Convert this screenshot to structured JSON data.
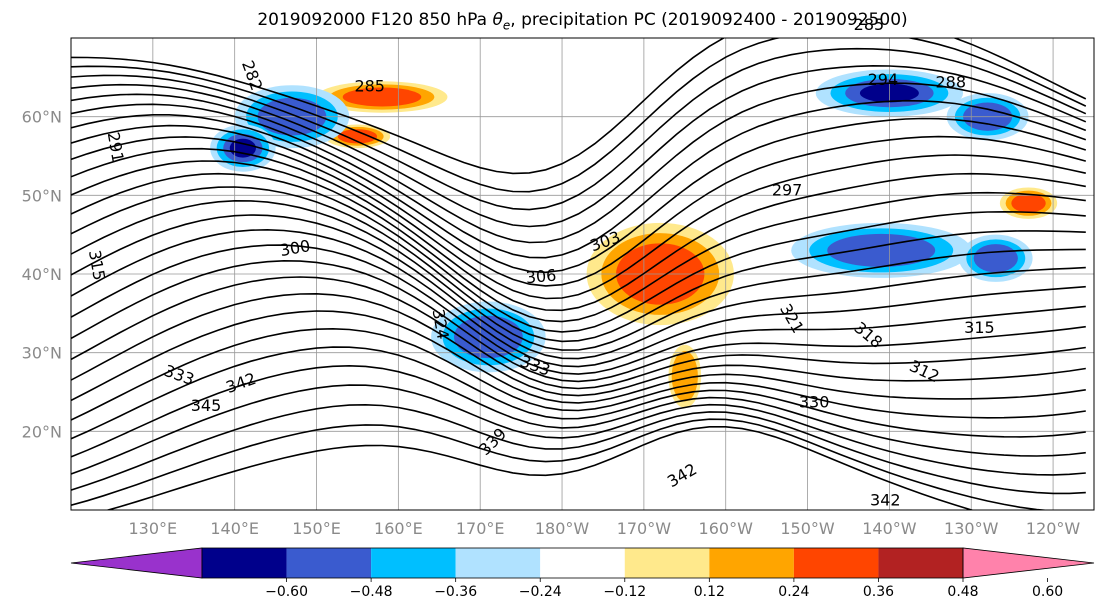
{
  "chart_data": {
    "type": "heatmap",
    "title": "2019092000 F120 850 hPa",
    "title_symbol": "θ",
    "title_subscript": "e",
    "title_rest": ", precipitation PC (2019092400 - 2019092500)",
    "lat_labels": [
      "60°N",
      "50°N",
      "40°N",
      "30°N",
      "20°N"
    ],
    "lat_values": [
      60,
      50,
      40,
      30,
      20
    ],
    "lon_labels": [
      "130°E",
      "140°E",
      "150°E",
      "160°E",
      "170°E",
      "180°W",
      "170°W",
      "160°W",
      "150°W",
      "140°W",
      "130°W",
      "120°W"
    ],
    "lon_range": [
      120,
      245
    ],
    "lat_range": [
      10,
      70
    ],
    "grid": true,
    "colorbar": {
      "orientation": "horizontal",
      "extend": "both",
      "levels": [
        -0.72,
        -0.6,
        -0.48,
        -0.36,
        -0.24,
        -0.12,
        0.12,
        0.24,
        0.36,
        0.48,
        0.6,
        0.72
      ],
      "colors": [
        "#9932cc",
        "#00008b",
        "#3a5bcf",
        "#00bfff",
        "#b0e2ff",
        "#ffffff",
        "#ffe98c",
        "#ffa500",
        "#ff4500",
        "#b22222",
        "#ff82ab"
      ],
      "tick_labels": [
        "−0.60",
        "−0.48",
        "−0.36",
        "−0.24",
        "−0.12",
        "0.12",
        "0.24",
        "0.36",
        "0.48",
        "0.60"
      ]
    },
    "contour_labels": [
      {
        "text": "282",
        "lon": 141.5,
        "lat": 65.0,
        "angle": 70
      },
      {
        "text": "285",
        "lon": 156.5,
        "lat": 63.2,
        "angle": 0
      },
      {
        "text": "291",
        "lon": 124.8,
        "lat": 56.0,
        "angle": 80
      },
      {
        "text": "300",
        "lon": 147.5,
        "lat": 42.6,
        "angle": -10
      },
      {
        "text": "315",
        "lon": 122.5,
        "lat": 41.0,
        "angle": 80
      },
      {
        "text": "324",
        "lon": 164.5,
        "lat": 33.5,
        "angle": 80
      },
      {
        "text": "306",
        "lon": 177.5,
        "lat": 39.0,
        "angle": -5
      },
      {
        "text": "303",
        "lon": 185.5,
        "lat": 43.5,
        "angle": -20
      },
      {
        "text": "297",
        "lon": 207.5,
        "lat": 50.0,
        "angle": 0
      },
      {
        "text": "288",
        "lon": 227.5,
        "lat": 63.7,
        "angle": 0
      },
      {
        "text": "285",
        "lon": 217.5,
        "lat": 71.0,
        "angle": 0
      },
      {
        "text": "294",
        "lon": 219.2,
        "lat": 64.0,
        "angle": 0
      },
      {
        "text": "315",
        "lon": 231.0,
        "lat": 32.5,
        "angle": 0
      },
      {
        "text": "321",
        "lon": 207.5,
        "lat": 34.0,
        "angle": 60
      },
      {
        "text": "318",
        "lon": 217.0,
        "lat": 31.7,
        "angle": 40
      },
      {
        "text": "312",
        "lon": 224.0,
        "lat": 27.0,
        "angle": 25
      },
      {
        "text": "342",
        "lon": 141.0,
        "lat": 25.5,
        "angle": -20
      },
      {
        "text": "345",
        "lon": 136.5,
        "lat": 22.6,
        "angle": 0
      },
      {
        "text": "333",
        "lon": 133.0,
        "lat": 26.5,
        "angle": 20
      },
      {
        "text": "339",
        "lon": 172.0,
        "lat": 18.2,
        "angle": -45
      },
      {
        "text": "330",
        "lon": 210.8,
        "lat": 23.0,
        "angle": 0
      },
      {
        "text": "342",
        "lon": 195.0,
        "lat": 13.8,
        "angle": -30
      },
      {
        "text": "342",
        "lon": 219.5,
        "lat": 10.6,
        "angle": 0
      },
      {
        "text": "333",
        "lon": 176.5,
        "lat": 27.7,
        "angle": 20
      }
    ],
    "precip_anomalies": [
      {
        "lon": 158,
        "lat": 62.5,
        "w": 16,
        "h": 4,
        "level": 0.42
      },
      {
        "lon": 155,
        "lat": 57.5,
        "w": 8,
        "h": 3,
        "level": 0.36
      },
      {
        "lon": 147,
        "lat": 60,
        "w": 14,
        "h": 8,
        "level": -0.4
      },
      {
        "lon": 141,
        "lat": 56,
        "w": 8,
        "h": 6,
        "level": -0.5
      },
      {
        "lon": 220,
        "lat": 63,
        "w": 18,
        "h": 6,
        "level": -0.55
      },
      {
        "lon": 232,
        "lat": 60,
        "w": 10,
        "h": 6,
        "level": -0.45
      },
      {
        "lon": 192,
        "lat": 40,
        "w": 18,
        "h": 13,
        "level": 0.4
      },
      {
        "lon": 171,
        "lat": 32,
        "w": 14,
        "h": 9,
        "level": -0.4
      },
      {
        "lon": 219,
        "lat": 43,
        "w": 22,
        "h": 7,
        "level": -0.45
      },
      {
        "lon": 237,
        "lat": 49,
        "w": 7,
        "h": 4,
        "level": 0.36
      },
      {
        "lon": 195,
        "lat": 27,
        "w": 4,
        "h": 8,
        "level": 0.3
      },
      {
        "lon": 233,
        "lat": 42,
        "w": 9,
        "h": 6,
        "level": -0.4
      }
    ]
  }
}
